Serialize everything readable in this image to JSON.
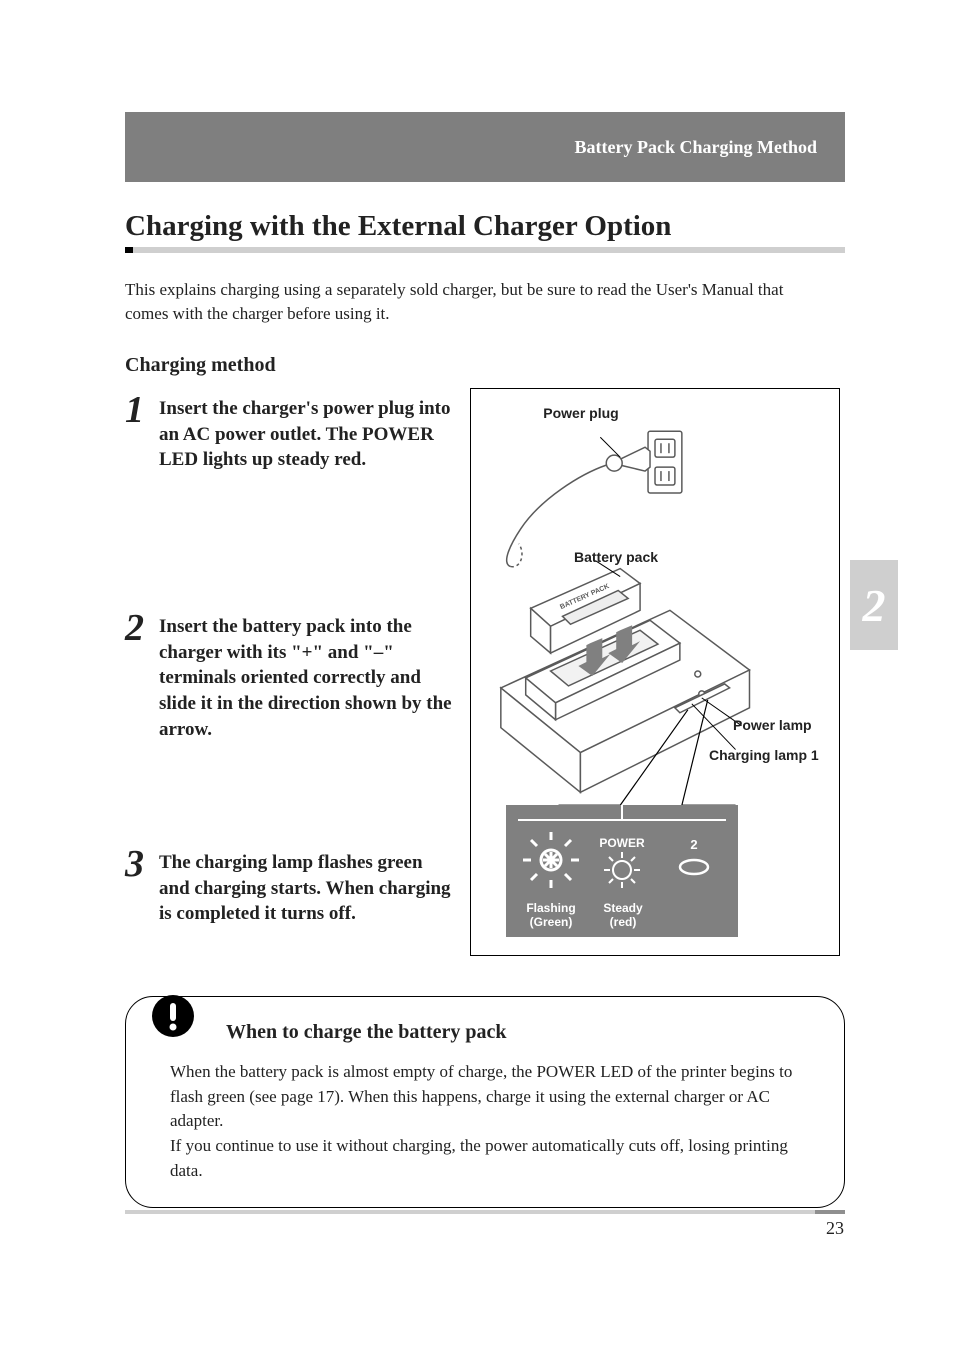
{
  "header": {
    "section_label": "Battery Pack Charging Method"
  },
  "title": "Charging with the External Charger Option",
  "intro": "This explains charging using a separately sold charger, but be sure to read the User's Manual that comes with the charger before using it.",
  "subhead": "Charging method",
  "steps": [
    {
      "num": "1",
      "text": "Insert the charger's power plug into an AC power outlet. The POWER LED lights up steady red."
    },
    {
      "num": "2",
      "text": "Insert the battery pack into the charger with its \"+\" and \"–\" terminals oriented correctly and slide it in the direction shown by the arrow."
    },
    {
      "num": "3",
      "text": "The charging lamp flashes green and charging starts. When charging is completed it turns off."
    }
  ],
  "diagram": {
    "labels": {
      "power_plug": "Power plug",
      "battery_pack": "Battery pack",
      "power_lamp": "Power lamp",
      "charging_lamp": "Charging lamp 1",
      "battery_pack_small": "BATTERY PACK",
      "led_power": "POWER",
      "led_2": "2",
      "flashing": "Flashing",
      "flashing_sub": "(Green)",
      "steady": "Steady",
      "steady_sub": "(red)"
    },
    "colors": {
      "border": "#000000",
      "line": "#5a5a5a",
      "fill": "#ffffff",
      "panel_bg": "#808080",
      "panel_fg": "#ffffff"
    }
  },
  "chapter_tab": "2",
  "note": {
    "title": "When to charge the battery pack",
    "body": "When the battery pack is almost empty of charge, the POWER LED of the printer begins to flash green (see page 17). When this happens, charge it using the external charger or AC adapter.\nIf you continue to use it without charging, the power automatically cuts off, losing printing data."
  },
  "page_number": "23"
}
